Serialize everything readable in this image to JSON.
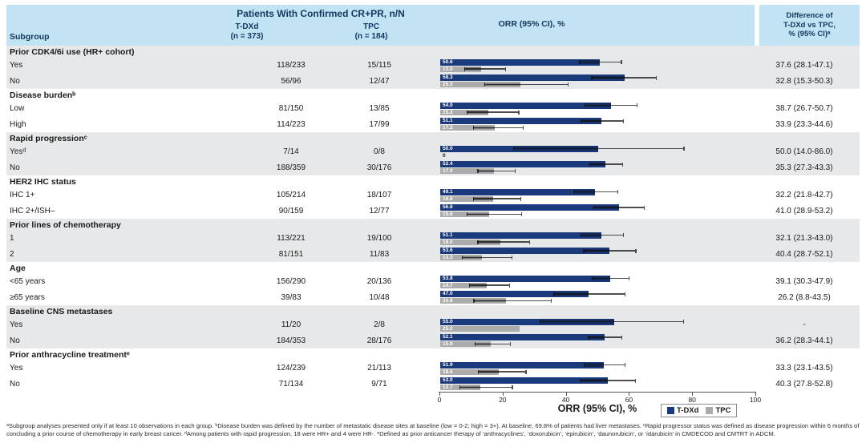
{
  "colors": {
    "header_blue": "#c2e3f4",
    "header_text": "#15365f",
    "band_gray": "#e6e8e9",
    "tdxd_bar": "#1a3a7c",
    "tpc_bar": "#ababab"
  },
  "header": {
    "subgroup": "Subgroup",
    "title": "Patients With Confirmed CR+PR, n/N",
    "col1_line1": "T-DXd",
    "col1_line2": "(n = 373)",
    "col2_line1": "TPC",
    "col2_line2": "(n = 184)",
    "orr": "ORR (95% CI), %",
    "diff_line1": "Difference of",
    "diff_line2": "T-DXd vs TPC,",
    "diff_line3": "% (95% CI)ᵃ"
  },
  "chart_data": {
    "type": "bar",
    "orientation": "horizontal",
    "series_names": [
      "T-DXd",
      "TPC"
    ],
    "xlabel": "ORR (95% CI), %",
    "axis": {
      "min": 0,
      "max": 100,
      "ticks": [
        0,
        20,
        40,
        60,
        80,
        100
      ]
    },
    "legend": [
      {
        "label": "T-DXd",
        "color": "#1a3a7c"
      },
      {
        "label": "TPC",
        "color": "#ababab"
      }
    ],
    "groups": [
      {
        "header": "Prior CDK4/6i use (HR+ cohort)",
        "rows": [
          {
            "label": "Yes",
            "tdxd_nN": "118/233",
            "tpc_nN": "15/115",
            "tdxd": {
              "value": 50.6,
              "label": "50.6",
              "ci": [
                44.0,
                57.2
              ]
            },
            "tpc": {
              "value": 13.0,
              "label": "13.0",
              "ci": [
                7.5,
                20.6
              ]
            },
            "diff": "37.6 (28.1-47.1)"
          },
          {
            "label": "No",
            "tdxd_nN": "56/96",
            "tpc_nN": "12/47",
            "tdxd": {
              "value": 58.3,
              "label": "58.3",
              "ci": [
                47.8,
                68.3
              ]
            },
            "tpc": {
              "value": 25.5,
              "label": "25.5",
              "ci": [
                13.9,
                40.3
              ]
            },
            "diff": "32.8 (15.3-50.3)"
          }
        ]
      },
      {
        "header": "Disease burdenᵇ",
        "rows": [
          {
            "label": "Low",
            "tdxd_nN": "81/150",
            "tpc_nN": "13/85",
            "tdxd": {
              "value": 54.0,
              "label": "54.0",
              "ci": [
                45.7,
                62.1
              ]
            },
            "tpc": {
              "value": 15.3,
              "label": "15.3",
              "ci": [
                8.4,
                24.7
              ]
            },
            "diff": "38.7 (26.7-50.7)"
          },
          {
            "label": "High",
            "tdxd_nN": "114/223",
            "tpc_nN": "17/99",
            "tdxd": {
              "value": 51.1,
              "label": "51.1",
              "ci": [
                44.4,
                57.9
              ]
            },
            "tpc": {
              "value": 17.2,
              "label": "17.2",
              "ci": [
                10.3,
                26.1
              ]
            },
            "diff": "33.9 (23.3-44.6)"
          }
        ]
      },
      {
        "header": "Rapid progressionᶜ",
        "rows": [
          {
            "label": "Yesᵈ",
            "tdxd_nN": "7/14",
            "tpc_nN": "0/8",
            "tdxd": {
              "value": 50.0,
              "label": "50.0",
              "ci": [
                23.0,
                77.0
              ]
            },
            "tpc": {
              "value": 0,
              "label": "0",
              "ci": null
            },
            "diff": "50.0 (14.0-86.0)"
          },
          {
            "label": "No",
            "tdxd_nN": "188/359",
            "tpc_nN": "30/176",
            "tdxd": {
              "value": 52.4,
              "label": "52.4",
              "ci": [
                47.1,
                57.6
              ]
            },
            "tpc": {
              "value": 17.0,
              "label": "17.0",
              "ci": [
                11.8,
                23.5
              ]
            },
            "diff": "35.3 (27.3-43.3)"
          }
        ]
      },
      {
        "header": "HER2 IHC status",
        "rows": [
          {
            "label": "IHC 1+",
            "tdxd_nN": "105/214",
            "tpc_nN": "18/107",
            "tdxd": {
              "value": 49.1,
              "label": "49.1",
              "ci": [
                42.2,
                56.0
              ]
            },
            "tpc": {
              "value": 16.8,
              "label": "16.8",
              "ci": [
                10.3,
                25.3
              ]
            },
            "diff": "32.2 (21.8-42.7)"
          },
          {
            "label": "IHC 2+/ISH–",
            "tdxd_nN": "90/159",
            "tpc_nN": "12/77",
            "tdxd": {
              "value": 56.6,
              "label": "56.6",
              "ci": [
                48.5,
                64.4
              ]
            },
            "tpc": {
              "value": 15.6,
              "label": "15.6",
              "ci": [
                8.3,
                25.6
              ]
            },
            "diff": "41.0 (28.9-53.2)"
          }
        ]
      },
      {
        "header": "Prior lines of chemotherapy",
        "rows": [
          {
            "label": "1",
            "tdxd_nN": "113/221",
            "tpc_nN": "19/100",
            "tdxd": {
              "value": 51.1,
              "label": "51.1",
              "ci": [
                44.3,
                57.9
              ]
            },
            "tpc": {
              "value": 19.0,
              "label": "19.0",
              "ci": [
                11.8,
                28.1
              ]
            },
            "diff": "32.1 (21.3-43.0)"
          },
          {
            "label": "2",
            "tdxd_nN": "81/151",
            "tpc_nN": "11/83",
            "tdxd": {
              "value": 53.6,
              "label": "53.6",
              "ci": [
                45.3,
                61.8
              ]
            },
            "tpc": {
              "value": 13.3,
              "label": "13.3",
              "ci": [
                6.8,
                22.5
              ]
            },
            "diff": "40.4 (28.7-52.1)"
          }
        ]
      },
      {
        "header": "Age",
        "rows": [
          {
            "label": "<65 years",
            "tdxd_nN": "156/290",
            "tpc_nN": "20/136",
            "tdxd": {
              "value": 53.8,
              "label": "53.8",
              "ci": [
                47.9,
                59.6
              ]
            },
            "tpc": {
              "value": 14.7,
              "label": "14.7",
              "ci": [
                9.2,
                21.8
              ]
            },
            "diff": "39.1 (30.3-47.9)"
          },
          {
            "label": "≥65 years",
            "tdxd_nN": "39/83",
            "tpc_nN": "10/48",
            "tdxd": {
              "value": 47.0,
              "label": "47.0",
              "ci": [
                35.9,
                58.3
              ]
            },
            "tpc": {
              "value": 20.8,
              "label": "20.8",
              "ci": [
                10.5,
                35.0
              ]
            },
            "diff": "26.2 (8.8-43.5)"
          }
        ]
      },
      {
        "header": "Baseline CNS metastases",
        "rows": [
          {
            "label": "Yes",
            "tdxd_nN": "11/20",
            "tpc_nN": "2/8",
            "tdxd": {
              "value": 55.0,
              "label": "55.0",
              "ci": [
                31.5,
                76.9
              ]
            },
            "tpc": {
              "value": 25.0,
              "label": "25.0",
              "ci": null
            },
            "diff": "-"
          },
          {
            "label": "No",
            "tdxd_nN": "184/353",
            "tpc_nN": "28/176",
            "tdxd": {
              "value": 52.1,
              "label": "52.1",
              "ci": [
                46.8,
                57.4
              ]
            },
            "tpc": {
              "value": 15.9,
              "label": "15.9",
              "ci": [
                10.8,
                22.1
              ]
            },
            "diff": "36.2 (28.3-44.1)"
          }
        ]
      },
      {
        "header": "Prior anthracycline treatmentᵉ",
        "rows": [
          {
            "label": "Yes",
            "tdxd_nN": "124/239",
            "tpc_nN": "21/113",
            "tdxd": {
              "value": 51.9,
              "label": "51.9",
              "ci": [
                45.4,
                58.3
              ]
            },
            "tpc": {
              "value": 18.6,
              "label": "18.6",
              "ci": [
                11.9,
                27.0
              ]
            },
            "diff": "33.3 (23.1-43.5)"
          },
          {
            "label": "No",
            "tdxd_nN": "71/134",
            "tpc_nN": "9/71",
            "tdxd": {
              "value": 53.0,
              "label": "53.0",
              "ci": [
                44.2,
                61.6
              ]
            },
            "tpc": {
              "value": 12.7,
              "label": "12.7",
              "ci": [
                6.0,
                22.7
              ]
            },
            "diff": "40.3 (27.8-52.8)"
          }
        ]
      }
    ]
  },
  "footnote": "ᵃSubgroup analyses presented only if at least 10 observations in each group. ᵇDisease burden was defined by the number of metastatic disease sites at baseline (low = 0-2; high = 3+). At baseline, 69.8% of patients had liver metastases. ᶜRapid progressor status was defined as disease progression within 6 months of concluding a prior course of chemotherapy in early breast cancer. ᵈAmong patients with rapid progression, 18 were HR+ and 4 were HR-. ᵉDefined as prior anticancer therapy of ‘anthracyclines’, ‘doxorubicin’, ‘epirubicin’, ‘daunorubicin’, or ‘idarubicin’ in CMDECOD and CMTRT in ADCM."
}
